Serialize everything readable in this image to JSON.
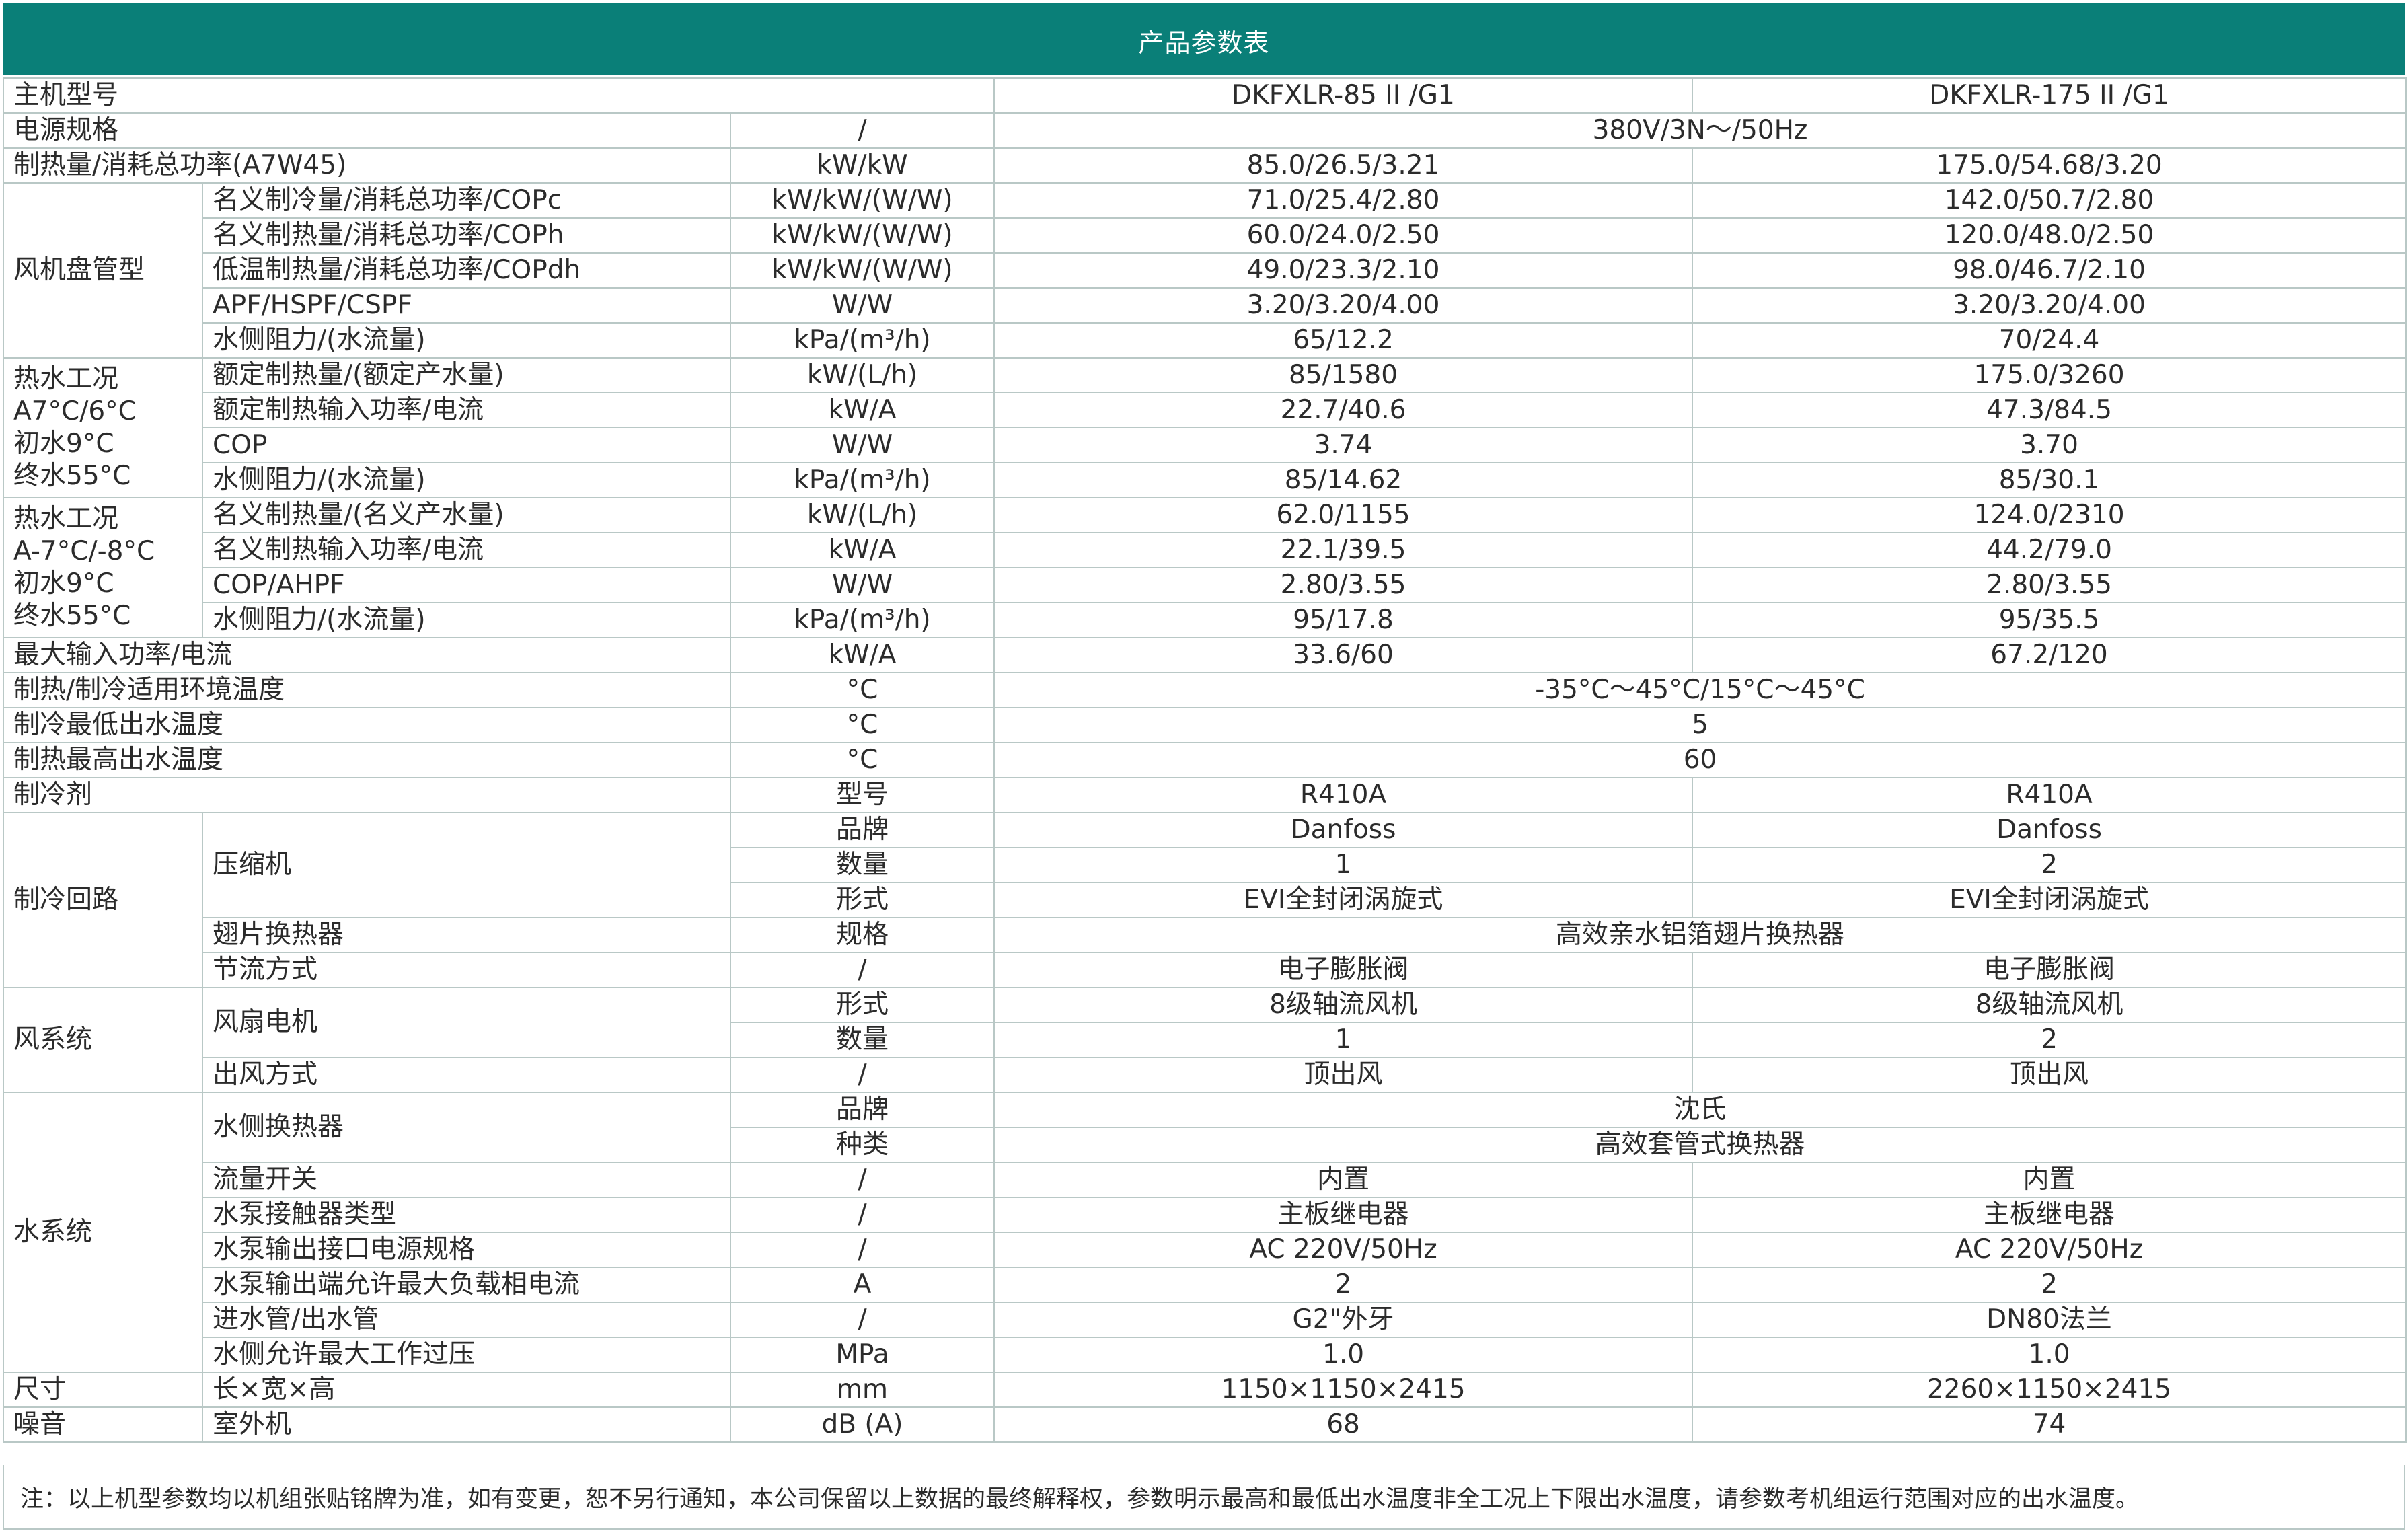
{
  "title": "产品参数表",
  "models": [
    "DKFXLR-85 II /G1",
    "DKFXLR-175 II /G1"
  ],
  "rows": {
    "model": "主机型号",
    "power_supply": {
      "label": "电源规格",
      "unit": "/",
      "value": "380V/3N～/50Hz"
    },
    "heating_a7w45": {
      "label": "制热量/消耗总功率(A7W45)",
      "unit": "kW/kW",
      "v1": "85.0/26.5/3.21",
      "v2": "175.0/54.68/3.20"
    },
    "fan_coil": {
      "group": "风机盘管型",
      "items": [
        {
          "label": "名义制冷量/消耗总功率/COPc",
          "unit": "kW/kW/(W/W)",
          "v1": "71.0/25.4/2.80",
          "v2": "142.0/50.7/2.80"
        },
        {
          "label": "名义制热量/消耗总功率/COPh",
          "unit": "kW/kW/(W/W)",
          "v1": "60.0/24.0/2.50",
          "v2": "120.0/48.0/2.50"
        },
        {
          "label": "低温制热量/消耗总功率/COPdh",
          "unit": "kW/kW/(W/W)",
          "v1": "49.0/23.3/2.10",
          "v2": "98.0/46.7/2.10"
        },
        {
          "label": "APF/HSPF/CSPF",
          "unit": "W/W",
          "v1": "3.20/3.20/4.00",
          "v2": "3.20/3.20/4.00"
        },
        {
          "label": "水侧阻力/(水流量)",
          "unit": "kPa/(m³/h)",
          "v1": "65/12.2",
          "v2": "70/24.4"
        }
      ]
    },
    "hot_water_a7": {
      "group_lines": [
        "热水工况",
        "A7°C/6°C",
        "初水9°C",
        "终水55°C"
      ],
      "items": [
        {
          "label": "额定制热量/(额定产水量)",
          "unit": "kW/(L/h)",
          "v1": "85/1580",
          "v2": "175.0/3260"
        },
        {
          "label": "额定制热输入功率/电流",
          "unit": "kW/A",
          "v1": "22.7/40.6",
          "v2": "47.3/84.5"
        },
        {
          "label": "COP",
          "unit": "W/W",
          "v1": "3.74",
          "v2": "3.70"
        },
        {
          "label": "水侧阻力/(水流量)",
          "unit": "kPa/(m³/h)",
          "v1": "85/14.62",
          "v2": "85/30.1"
        }
      ]
    },
    "hot_water_am7": {
      "group_lines": [
        "热水工况",
        "A-7°C/-8°C",
        "初水9°C",
        "终水55°C"
      ],
      "items": [
        {
          "label": "名义制热量/(名义产水量)",
          "unit": "kW/(L/h)",
          "v1": "62.0/1155",
          "v2": "124.0/2310"
        },
        {
          "label": "名义制热输入功率/电流",
          "unit": "kW/A",
          "v1": "22.1/39.5",
          "v2": "44.2/79.0"
        },
        {
          "label": "COP/AHPF",
          "unit": "W/W",
          "v1": "2.80/3.55",
          "v2": "2.80/3.55"
        },
        {
          "label": "水侧阻力/(水流量)",
          "unit": "kPa/(m³/h)",
          "v1": "95/17.8",
          "v2": "95/35.5"
        }
      ]
    },
    "max_input": {
      "label": "最大输入功率/电流",
      "unit": "kW/A",
      "v1": "33.6/60",
      "v2": "67.2/120"
    },
    "ambient_temp": {
      "label": "制热/制冷适用环境温度",
      "unit": "°C",
      "value": "-35°C～45°C/15°C～45°C"
    },
    "min_cool_out": {
      "label": "制冷最低出水温度",
      "unit": "°C",
      "value": "5"
    },
    "max_heat_out": {
      "label": "制热最高出水温度",
      "unit": "°C",
      "value": "60"
    },
    "refrigerant": {
      "label": "制冷剂",
      "unit": "型号",
      "v1": "R410A",
      "v2": "R410A"
    },
    "cooling_circuit": {
      "group": "制冷回路",
      "compressor": "压缩机",
      "compressor_items": [
        {
          "unit": "品牌",
          "v1": "Danfoss",
          "v2": "Danfoss"
        },
        {
          "unit": "数量",
          "v1": "1",
          "v2": "2"
        },
        {
          "unit": "形式",
          "v1": "EVI全封闭涡旋式",
          "v2": "EVI全封闭涡旋式"
        }
      ],
      "fin_hx": {
        "label": "翅片换热器",
        "unit": "规格",
        "value": "高效亲水铝箔翅片换热器"
      },
      "throttle": {
        "label": "节流方式",
        "unit": "/",
        "v1": "电子膨胀阀",
        "v2": "电子膨胀阀"
      }
    },
    "air_system": {
      "group": "风系统",
      "fan_motor": "风扇电机",
      "fan_items": [
        {
          "unit": "形式",
          "v1": "8级轴流风机",
          "v2": "8级轴流风机"
        },
        {
          "unit": "数量",
          "v1": "1",
          "v2": "2"
        }
      ],
      "outlet": {
        "label": "出风方式",
        "unit": "/",
        "v1": "顶出风",
        "v2": "顶出风"
      }
    },
    "water_system": {
      "group": "水系统",
      "water_hx": "水侧换热器",
      "hx_items": [
        {
          "unit": "品牌",
          "value": "沈氏"
        },
        {
          "unit": "种类",
          "value": "高效套管式换热器"
        }
      ],
      "items": [
        {
          "label": "流量开关",
          "unit": "/",
          "v1": "内置",
          "v2": "内置"
        },
        {
          "label": "水泵接触器类型",
          "unit": "/",
          "v1": "主板继电器",
          "v2": "主板继电器"
        },
        {
          "label": "水泵输出接口电源规格",
          "unit": "/",
          "v1": "AC 220V/50Hz",
          "v2": "AC 220V/50Hz"
        },
        {
          "label": "水泵输出端允许最大负载相电流",
          "unit": "A",
          "v1": "2",
          "v2": "2"
        },
        {
          "label": "进水管/出水管",
          "unit": "/",
          "v1": "G2\"外牙",
          "v2": "DN80法兰"
        },
        {
          "label": "水侧允许最大工作过压",
          "unit": "MPa",
          "v1": "1.0",
          "v2": "1.0"
        }
      ]
    },
    "size": {
      "group": "尺寸",
      "label": "长×宽×高",
      "unit": "mm",
      "v1": "1150×1150×2415",
      "v2": "2260×1150×2415"
    },
    "noise": {
      "group": "噪音",
      "label": "室外机",
      "unit": "dB (A)",
      "v1": "68",
      "v2": "74"
    }
  },
  "note": "注：以上机型参数均以机组张贴铭牌为准，如有变更，恕不另行通知，本公司保留以上数据的最终解释权，参数明示最高和最低出水温度非全工况上下限出水温度，请参数考机组运行范围对应的出水温度。",
  "colors": {
    "header_bg": "#0a7f78",
    "border": "#b9c8c6",
    "text": "#2b2b2b"
  }
}
